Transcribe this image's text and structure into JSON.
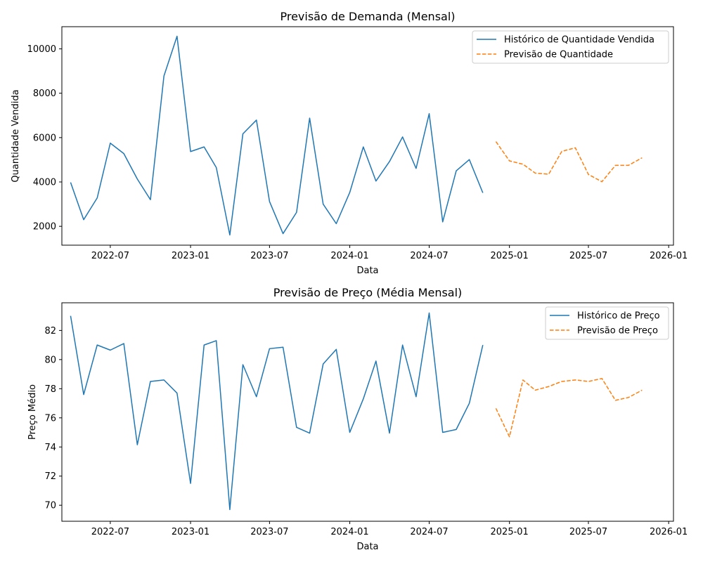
{
  "chart_data": [
    {
      "type": "line",
      "title": "Previsão de Demanda (Mensal)",
      "xlabel": "Data",
      "ylabel": "Quantidade Vendida",
      "grid": false,
      "legend_position": "top-right",
      "xlim": [
        "2022-03-12",
        "2026-01-12"
      ],
      "ylim": [
        1150,
        11000
      ],
      "x_ticks": [
        {
          "date": "2022-07-01",
          "label": "2022-07"
        },
        {
          "date": "2023-01-01",
          "label": "2023-01"
        },
        {
          "date": "2023-07-01",
          "label": "2023-07"
        },
        {
          "date": "2024-01-01",
          "label": "2024-01"
        },
        {
          "date": "2024-07-01",
          "label": "2024-07"
        },
        {
          "date": "2025-01-01",
          "label": "2025-01"
        },
        {
          "date": "2025-07-01",
          "label": "2025-07"
        },
        {
          "date": "2026-01-01",
          "label": "2026-01"
        }
      ],
      "y_ticks": [
        {
          "value": 2000,
          "label": "2000"
        },
        {
          "value": 4000,
          "label": "4000"
        },
        {
          "value": 6000,
          "label": "6000"
        },
        {
          "value": 8000,
          "label": "8000"
        },
        {
          "value": 10000,
          "label": "10000"
        }
      ],
      "series": [
        {
          "name": "Histórico de Quantidade Vendida",
          "color": "#1f77b4",
          "style": "solid",
          "x": [
            "2022-04-01",
            "2022-05-01",
            "2022-06-01",
            "2022-07-01",
            "2022-08-01",
            "2022-09-01",
            "2022-10-01",
            "2022-11-01",
            "2022-12-01",
            "2023-01-01",
            "2023-02-01",
            "2023-03-01",
            "2023-04-01",
            "2023-05-01",
            "2023-06-01",
            "2023-07-01",
            "2023-08-01",
            "2023-09-01",
            "2023-10-01",
            "2023-11-01",
            "2023-12-01",
            "2024-01-01",
            "2024-02-01",
            "2024-03-01",
            "2024-04-01",
            "2024-05-01",
            "2024-06-01",
            "2024-07-01",
            "2024-08-01",
            "2024-09-01",
            "2024-10-01",
            "2024-11-01"
          ],
          "y": [
            3980,
            2300,
            3280,
            5750,
            5280,
            4130,
            3200,
            8780,
            10570,
            5370,
            5580,
            4650,
            1610,
            6170,
            6790,
            3120,
            1670,
            2630,
            6880,
            3000,
            2120,
            3530,
            5580,
            4040,
            4920,
            6030,
            4610,
            7080,
            2200,
            4500,
            5010,
            3510
          ]
        },
        {
          "name": "Previsão de Quantidade",
          "color": "#ff7f0e",
          "style": "dashed",
          "x": [
            "2024-12-01",
            "2025-01-01",
            "2025-02-01",
            "2025-03-01",
            "2025-04-01",
            "2025-05-01",
            "2025-06-01",
            "2025-07-01",
            "2025-08-01",
            "2025-09-01",
            "2025-10-01",
            "2025-11-01"
          ],
          "y": [
            5820,
            4950,
            4800,
            4400,
            4350,
            5380,
            5540,
            4340,
            4010,
            4750,
            4750,
            5090
          ]
        }
      ]
    },
    {
      "type": "line",
      "title": "Previsão de Preço (Média Mensal)",
      "xlabel": "Data",
      "ylabel": "Preço Médio",
      "grid": false,
      "legend_position": "top-right",
      "xlim": [
        "2022-03-12",
        "2026-01-12"
      ],
      "ylim": [
        68.9,
        83.9
      ],
      "x_ticks": [
        {
          "date": "2022-07-01",
          "label": "2022-07"
        },
        {
          "date": "2023-01-01",
          "label": "2023-01"
        },
        {
          "date": "2023-07-01",
          "label": "2023-07"
        },
        {
          "date": "2024-01-01",
          "label": "2024-01"
        },
        {
          "date": "2024-07-01",
          "label": "2024-07"
        },
        {
          "date": "2025-01-01",
          "label": "2025-01"
        },
        {
          "date": "2025-07-01",
          "label": "2025-07"
        },
        {
          "date": "2026-01-01",
          "label": "2026-01"
        }
      ],
      "y_ticks": [
        {
          "value": 70,
          "label": "70"
        },
        {
          "value": 72,
          "label": "72"
        },
        {
          "value": 74,
          "label": "74"
        },
        {
          "value": 76,
          "label": "76"
        },
        {
          "value": 78,
          "label": "78"
        },
        {
          "value": 80,
          "label": "80"
        },
        {
          "value": 82,
          "label": "82"
        }
      ],
      "series": [
        {
          "name": "Histórico de Preço",
          "color": "#1f77b4",
          "style": "solid",
          "x": [
            "2022-04-01",
            "2022-05-01",
            "2022-06-01",
            "2022-07-01",
            "2022-08-01",
            "2022-09-01",
            "2022-10-01",
            "2022-11-01",
            "2022-12-01",
            "2023-01-01",
            "2023-02-01",
            "2023-03-01",
            "2023-04-01",
            "2023-05-01",
            "2023-06-01",
            "2023-07-01",
            "2023-08-01",
            "2023-09-01",
            "2023-10-01",
            "2023-11-01",
            "2023-12-01",
            "2024-01-01",
            "2024-02-01",
            "2024-03-01",
            "2024-04-01",
            "2024-05-01",
            "2024-06-01",
            "2024-07-01",
            "2024-08-01",
            "2024-09-01",
            "2024-10-01",
            "2024-11-01"
          ],
          "y": [
            83.0,
            77.6,
            81.0,
            80.65,
            81.1,
            74.15,
            78.5,
            78.6,
            77.7,
            71.5,
            81.0,
            81.3,
            69.7,
            79.65,
            77.45,
            80.75,
            80.85,
            75.35,
            74.95,
            79.7,
            80.7,
            75.0,
            77.3,
            79.9,
            74.95,
            81.0,
            77.45,
            83.2,
            75.0,
            75.2,
            77.0,
            81.0
          ]
        },
        {
          "name": "Previsão de Preço",
          "color": "#ff7f0e",
          "style": "dashed",
          "x": [
            "2024-12-01",
            "2025-01-01",
            "2025-02-01",
            "2025-03-01",
            "2025-04-01",
            "2025-05-01",
            "2025-06-01",
            "2025-07-01",
            "2025-08-01",
            "2025-09-01",
            "2025-10-01",
            "2025-11-01"
          ],
          "y": [
            76.65,
            74.7,
            78.6,
            77.9,
            78.15,
            78.5,
            78.6,
            78.5,
            78.7,
            77.2,
            77.4,
            77.9
          ]
        }
      ]
    }
  ]
}
